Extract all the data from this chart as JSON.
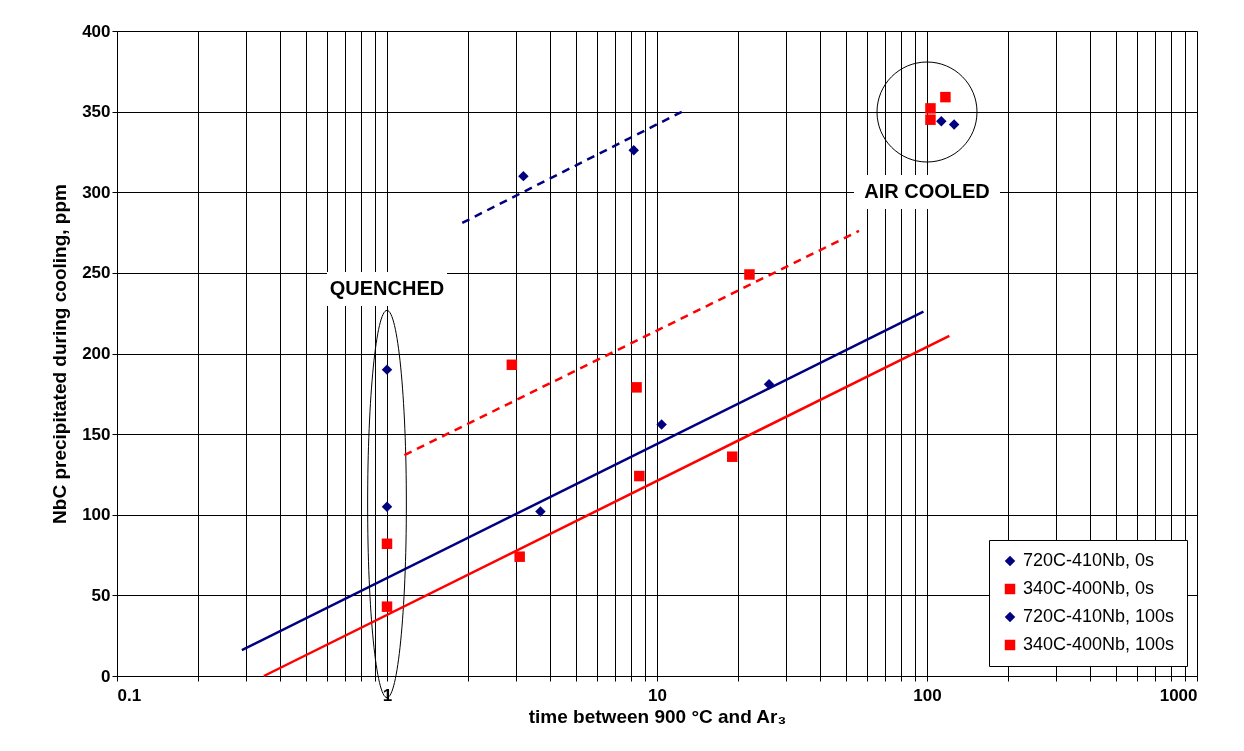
{
  "chart_data": {
    "type": "scatter",
    "xlabel": "time between 900 °C and Ar₃",
    "ylabel": "NbC precipitated during cooling, ppm",
    "log": "x",
    "grid": true,
    "legend": "bottom right",
    "xlim": [
      0.1,
      1000
    ],
    "ylim": [
      0,
      400
    ],
    "yticks": [
      0,
      50,
      100,
      150,
      200,
      250,
      300,
      350,
      400
    ],
    "xticks": [
      0.1,
      {
        "value": 0.2,
        "label": null
      },
      {
        "value": 0.3,
        "label": null
      },
      {
        "value": 0.4,
        "label": null
      },
      {
        "value": 0.5,
        "label": null
      },
      {
        "value": 0.6,
        "label": null
      },
      {
        "value": 0.7,
        "label": null
      },
      {
        "value": 0.8,
        "label": null
      },
      {
        "value": 0.9,
        "label": null
      },
      1,
      {
        "value": 2,
        "label": null
      },
      {
        "value": 3,
        "label": null
      },
      {
        "value": 4,
        "label": null
      },
      {
        "value": 5,
        "label": null
      },
      {
        "value": 6,
        "label": null
      },
      {
        "value": 7,
        "label": null
      },
      {
        "value": 8,
        "label": null
      },
      {
        "value": 9,
        "label": null
      },
      10,
      {
        "value": 20,
        "label": null
      },
      {
        "value": 30,
        "label": null
      },
      {
        "value": 40,
        "label": null
      },
      {
        "value": 50,
        "label": null
      },
      {
        "value": 60,
        "label": null
      },
      {
        "value": 70,
        "label": null
      },
      {
        "value": 80,
        "label": null
      },
      {
        "value": 90,
        "label": null
      },
      100,
      {
        "value": 200,
        "label": null
      },
      {
        "value": 300,
        "label": null
      },
      {
        "value": 400,
        "label": null
      },
      {
        "value": 500,
        "label": null
      },
      {
        "value": 600,
        "label": null
      },
      {
        "value": 700,
        "label": null
      },
      {
        "value": 800,
        "label": null
      },
      {
        "value": 900,
        "label": null
      },
      1000
    ],
    "series": [
      {
        "type": "line",
        "color": "#000080",
        "line_style": "solid",
        "marker": "none",
        "x": [
          0.29,
          97
        ],
        "values": [
          16,
          226
        ]
      },
      {
        "type": "line",
        "color": "#ff0000",
        "line_style": "solid",
        "marker": "none",
        "x": [
          0.35,
          121
        ],
        "values": [
          0,
          211
        ]
      },
      {
        "type": "line",
        "color": "#ff0000",
        "line_style": "dashed",
        "marker": "none",
        "x": [
          1.16,
          56
        ],
        "values": [
          137,
          276
        ]
      },
      {
        "type": "line",
        "color": "#000080",
        "line_style": "dashed",
        "marker": "none",
        "x": [
          1.9,
          12.4
        ],
        "values": [
          281,
          350
        ]
      },
      {
        "name": "720C-410Nb, 0s",
        "marker": "diamond",
        "color": "#000080",
        "x": [
          1,
          3.7,
          10.4,
          26,
          126
        ],
        "values": [
          105,
          102,
          156,
          181,
          342
        ]
      },
      {
        "name": "340C-400Nb, 0s",
        "marker": "square",
        "color": "#ff0000",
        "x": [
          1,
          3.1,
          8.6,
          19,
          103,
          117
        ],
        "values": [
          43,
          74,
          124,
          136,
          345,
          359
        ]
      },
      {
        "name": "720C-410Nb, 100s",
        "marker": "diamond",
        "color": "#000080",
        "x": [
          1,
          3.2,
          8.2,
          113
        ],
        "values": [
          190,
          310,
          326,
          344
        ]
      },
      {
        "name": "340C-400Nb, 100s",
        "marker": "square",
        "color": "#ff0000",
        "x": [
          1,
          2.9,
          8.4,
          22,
          103
        ],
        "values": [
          82,
          193,
          179,
          249,
          352
        ]
      }
    ],
    "annotations": [
      "QUENCHED",
      "AIR COOLED"
    ]
  }
}
